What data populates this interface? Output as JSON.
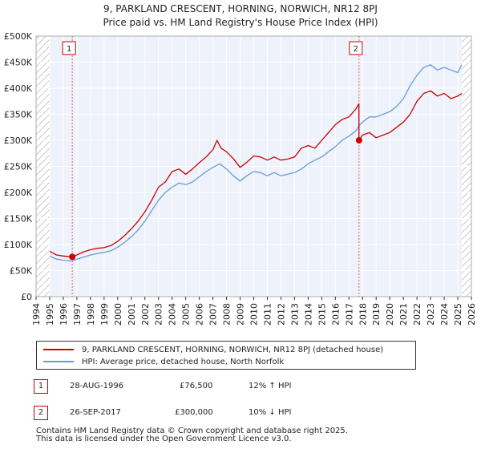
{
  "chart_data": {
    "type": "line",
    "title": "9, PARKLAND CRESCENT, HORNING, NORWICH, NR12 8PJ",
    "subtitle": "Price paid vs. HM Land Registry's House Price Index (HPI)",
    "xlim": [
      1994,
      2026
    ],
    "ylim": [
      0,
      500000
    ],
    "x_ticks": [
      "1994",
      "1995",
      "1996",
      "1997",
      "1998",
      "1999",
      "2000",
      "2001",
      "2002",
      "2003",
      "2004",
      "2005",
      "2006",
      "2007",
      "2008",
      "2009",
      "2010",
      "2011",
      "2012",
      "2013",
      "2014",
      "2015",
      "2016",
      "2017",
      "2018",
      "2019",
      "2020",
      "2021",
      "2022",
      "2023",
      "2024",
      "2025",
      "2026"
    ],
    "y_ticks": [
      {
        "value": 0,
        "label": "£0"
      },
      {
        "value": 50000,
        "label": "£50K"
      },
      {
        "value": 100000,
        "label": "£100K"
      },
      {
        "value": 150000,
        "label": "£150K"
      },
      {
        "value": 200000,
        "label": "£200K"
      },
      {
        "value": 250000,
        "label": "£250K"
      },
      {
        "value": 300000,
        "label": "£300K"
      },
      {
        "value": 350000,
        "label": "£350K"
      },
      {
        "value": 400000,
        "label": "£400K"
      },
      {
        "value": 450000,
        "label": "£450K"
      },
      {
        "value": 500000,
        "label": "£500K"
      }
    ],
    "data_start": 1995.0,
    "data_end": 2025.3,
    "series": [
      {
        "name": "9, PARKLAND CRESCENT, HORNING, NORWICH, NR12 8PJ (detached house)",
        "color": "#cc0000",
        "points": [
          [
            1995.0,
            87000
          ],
          [
            1995.5,
            80000
          ],
          [
            1996.0,
            78000
          ],
          [
            1996.66,
            76500
          ],
          [
            1997.0,
            80000
          ],
          [
            1997.5,
            86000
          ],
          [
            1998.0,
            90000
          ],
          [
            1998.5,
            93000
          ],
          [
            1999.0,
            94000
          ],
          [
            1999.5,
            98000
          ],
          [
            2000.0,
            106000
          ],
          [
            2000.5,
            117000
          ],
          [
            2001.0,
            130000
          ],
          [
            2001.5,
            145000
          ],
          [
            2002.0,
            163000
          ],
          [
            2002.5,
            185000
          ],
          [
            2003.0,
            210000
          ],
          [
            2003.5,
            220000
          ],
          [
            2004.0,
            240000
          ],
          [
            2004.5,
            245000
          ],
          [
            2005.0,
            235000
          ],
          [
            2005.5,
            245000
          ],
          [
            2006.0,
            257000
          ],
          [
            2006.5,
            268000
          ],
          [
            2007.0,
            282000
          ],
          [
            2007.3,
            300000
          ],
          [
            2007.6,
            285000
          ],
          [
            2008.0,
            278000
          ],
          [
            2008.5,
            265000
          ],
          [
            2009.0,
            248000
          ],
          [
            2009.5,
            258000
          ],
          [
            2010.0,
            270000
          ],
          [
            2010.5,
            268000
          ],
          [
            2011.0,
            262000
          ],
          [
            2011.5,
            268000
          ],
          [
            2012.0,
            262000
          ],
          [
            2012.5,
            264000
          ],
          [
            2013.0,
            268000
          ],
          [
            2013.5,
            285000
          ],
          [
            2014.0,
            290000
          ],
          [
            2014.5,
            285000
          ],
          [
            2015.0,
            300000
          ],
          [
            2015.5,
            315000
          ],
          [
            2016.0,
            330000
          ],
          [
            2016.5,
            340000
          ],
          [
            2017.0,
            345000
          ],
          [
            2017.5,
            360000
          ],
          [
            2017.73,
            370000
          ],
          [
            2017.74,
            300000
          ],
          [
            2018.0,
            310000
          ],
          [
            2018.5,
            315000
          ],
          [
            2019.0,
            305000
          ],
          [
            2019.5,
            310000
          ],
          [
            2020.0,
            315000
          ],
          [
            2020.5,
            325000
          ],
          [
            2021.0,
            335000
          ],
          [
            2021.5,
            350000
          ],
          [
            2022.0,
            375000
          ],
          [
            2022.5,
            390000
          ],
          [
            2023.0,
            395000
          ],
          [
            2023.5,
            385000
          ],
          [
            2024.0,
            390000
          ],
          [
            2024.5,
            380000
          ],
          [
            2025.0,
            385000
          ],
          [
            2025.3,
            390000
          ]
        ]
      },
      {
        "name": "HPI: Average price, detached house, North Norfolk",
        "color": "#6b9bd1",
        "points": [
          [
            1995.0,
            78000
          ],
          [
            1995.5,
            72000
          ],
          [
            1996.0,
            70000
          ],
          [
            1996.66,
            68500
          ],
          [
            1997.0,
            72000
          ],
          [
            1997.5,
            76000
          ],
          [
            1998.0,
            80000
          ],
          [
            1998.5,
            83000
          ],
          [
            1999.0,
            85000
          ],
          [
            1999.5,
            88000
          ],
          [
            2000.0,
            95000
          ],
          [
            2000.5,
            104000
          ],
          [
            2001.0,
            115000
          ],
          [
            2001.5,
            128000
          ],
          [
            2002.0,
            145000
          ],
          [
            2002.5,
            165000
          ],
          [
            2003.0,
            185000
          ],
          [
            2003.5,
            200000
          ],
          [
            2004.0,
            210000
          ],
          [
            2004.5,
            218000
          ],
          [
            2005.0,
            215000
          ],
          [
            2005.5,
            220000
          ],
          [
            2006.0,
            230000
          ],
          [
            2006.5,
            240000
          ],
          [
            2007.0,
            248000
          ],
          [
            2007.5,
            255000
          ],
          [
            2008.0,
            245000
          ],
          [
            2008.5,
            232000
          ],
          [
            2009.0,
            222000
          ],
          [
            2009.5,
            232000
          ],
          [
            2010.0,
            240000
          ],
          [
            2010.5,
            238000
          ],
          [
            2011.0,
            232000
          ],
          [
            2011.5,
            238000
          ],
          [
            2012.0,
            232000
          ],
          [
            2012.5,
            235000
          ],
          [
            2013.0,
            238000
          ],
          [
            2013.5,
            245000
          ],
          [
            2014.0,
            255000
          ],
          [
            2014.5,
            262000
          ],
          [
            2015.0,
            268000
          ],
          [
            2015.5,
            278000
          ],
          [
            2016.0,
            288000
          ],
          [
            2016.5,
            300000
          ],
          [
            2017.0,
            308000
          ],
          [
            2017.5,
            318000
          ],
          [
            2017.74,
            328000
          ],
          [
            2018.0,
            335000
          ],
          [
            2018.5,
            345000
          ],
          [
            2019.0,
            345000
          ],
          [
            2019.5,
            350000
          ],
          [
            2020.0,
            355000
          ],
          [
            2020.5,
            365000
          ],
          [
            2021.0,
            380000
          ],
          [
            2021.5,
            405000
          ],
          [
            2022.0,
            425000
          ],
          [
            2022.5,
            440000
          ],
          [
            2023.0,
            445000
          ],
          [
            2023.5,
            435000
          ],
          [
            2024.0,
            440000
          ],
          [
            2024.5,
            435000
          ],
          [
            2025.0,
            430000
          ],
          [
            2025.3,
            445000
          ]
        ]
      }
    ],
    "markers": [
      {
        "id": "1",
        "x": 1996.66,
        "value": 76500
      },
      {
        "id": "2",
        "x": 2017.74,
        "value": 300000
      }
    ]
  },
  "legend": [
    {
      "label": "9, PARKLAND CRESCENT, HORNING, NORWICH, NR12 8PJ (detached house)",
      "color": "#cc0000"
    },
    {
      "label": "HPI: Average price, detached house, North Norfolk",
      "color": "#6b9bd1"
    }
  ],
  "sales": [
    {
      "id": "1",
      "date": "28-AUG-1996",
      "price": "£76,500",
      "hpi": "12% ↑ HPI"
    },
    {
      "id": "2",
      "date": "26-SEP-2017",
      "price": "£300,000",
      "hpi": "10% ↓ HPI"
    }
  ],
  "footer": {
    "line1": "Contains HM Land Registry data © Crown copyright and database right 2025.",
    "line2": "This data is licensed under the Open Government Licence v3.0."
  },
  "colors": {
    "plot_bg": "#eef2fb",
    "grid": "#ffffff",
    "hatch": "#c0c0c0",
    "marker_line": "#e06060"
  }
}
